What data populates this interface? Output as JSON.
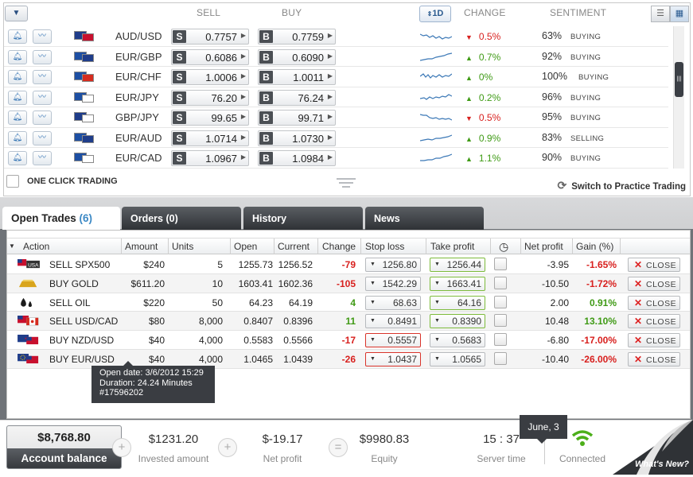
{
  "rates_panel": {
    "headers": {
      "sell": "SELL",
      "buy": "BUY",
      "change": "CHANGE",
      "sentiment": "SENTIMENT"
    },
    "timeframe": "1D",
    "filter_icon": "filter-icon",
    "rows": [
      {
        "symbol": "AUD/USD",
        "sell": "0.7757",
        "buy": "0.7759",
        "change": "0.5%",
        "direction": "down",
        "pct": "63%",
        "sentiment": "BUYING",
        "flag1": "#1f3d8a",
        "flag2": "#c8102e"
      },
      {
        "symbol": "EUR/GBP",
        "sell": "0.6086",
        "buy": "0.6090",
        "change": "0.7%",
        "direction": "up",
        "pct": "92%",
        "sentiment": "BUYING",
        "flag1": "#1d4fa3",
        "flag2": "#1f3d8a"
      },
      {
        "symbol": "EUR/CHF",
        "sell": "1.0006",
        "buy": "1.0011",
        "change": "0%",
        "direction": "up",
        "pct": "100%",
        "sentiment": "BUYING",
        "flag1": "#1d4fa3",
        "flag2": "#d52b1e"
      },
      {
        "symbol": "EUR/JPY",
        "sell": "76.20",
        "buy": "76.24",
        "change": "0.2%",
        "direction": "up",
        "pct": "96%",
        "sentiment": "BUYING",
        "flag1": "#1d4fa3",
        "flag2": "#ffffff"
      },
      {
        "symbol": "GBP/JPY",
        "sell": "99.65",
        "buy": "99.71",
        "change": "0.5%",
        "direction": "down",
        "pct": "95%",
        "sentiment": "BUYING",
        "flag1": "#1f3d8a",
        "flag2": "#ffffff"
      },
      {
        "symbol": "EUR/AUD",
        "sell": "1.0714",
        "buy": "1.0730",
        "change": "0.9%",
        "direction": "up",
        "pct": "83%",
        "sentiment": "SELLING",
        "flag1": "#1d4fa3",
        "flag2": "#1f3d8a"
      },
      {
        "symbol": "EUR/CAD",
        "sell": "1.0967",
        "buy": "1.0984",
        "change": "1.1%",
        "direction": "up",
        "pct": "90%",
        "sentiment": "BUYING",
        "flag1": "#1d4fa3",
        "flag2": "#ffffff"
      }
    ],
    "one_click_label": "ONE CLICK TRADING",
    "practice_label": "Switch to Practice Trading"
  },
  "tabs": [
    {
      "label": "Open Trades",
      "count": "(6)"
    },
    {
      "label": "Orders (0)"
    },
    {
      "label": "History"
    },
    {
      "label": "News"
    }
  ],
  "trades_table": {
    "columns": [
      "Action",
      "Amount",
      "Units",
      "Open",
      "Current",
      "Change",
      "Stop loss",
      "Take profit",
      "Net profit",
      "Gain (%)"
    ],
    "close_label": "CLOSE",
    "rows": [
      {
        "action": "SELL SPX500",
        "amount": "$240",
        "units": "5",
        "open": "1255.73",
        "current": "1256.52",
        "change": "-79",
        "stop": "1256.80",
        "take": "1256.44",
        "net": "-3.95",
        "gain": "-1.65%",
        "icon": "usa-index-icon",
        "stop_style": "",
        "take_style": "green"
      },
      {
        "action": "BUY GOLD",
        "amount": "$611.20",
        "units": "10",
        "open": "1603.41",
        "current": "1602.36",
        "change": "-105",
        "stop": "1542.29",
        "take": "1663.41",
        "net": "-10.50",
        "gain": "-1.72%",
        "icon": "gold-bar-icon",
        "stop_style": "",
        "take_style": "green"
      },
      {
        "action": "SELL OIL",
        "amount": "$220",
        "units": "50",
        "open": "64.23",
        "current": "64.19",
        "change": "4",
        "stop": "68.63",
        "take": "64.16",
        "net": "2.00",
        "gain": "0.91%",
        "icon": "oil-drops-icon",
        "stop_style": "",
        "take_style": "green"
      },
      {
        "action": "SELL USD/CAD",
        "amount": "$80",
        "units": "8,000",
        "open": "0.8407",
        "current": "0.8396",
        "change": "11",
        "stop": "0.8491",
        "take": "0.8390",
        "net": "10.48",
        "gain": "13.10%",
        "icon": "us-canada-flags-icon",
        "stop_style": "",
        "take_style": "green"
      },
      {
        "action": "BUY NZD/USD",
        "amount": "$40",
        "units": "4,000",
        "open": "0.5583",
        "current": "0.5566",
        "change": "-17",
        "stop": "0.5557",
        "take": "0.5683",
        "net": "-6.80",
        "gain": "-17.00%",
        "icon": "nz-us-flags-icon",
        "stop_style": "red",
        "take_style": ""
      },
      {
        "action": "BUY EUR/USD",
        "amount": "$40",
        "units": "4,000",
        "open": "1.0465",
        "current": "1.0439",
        "change": "-26",
        "stop": "1.0437",
        "take": "1.0565",
        "net": "-10.40",
        "gain": "-26.00%",
        "icon": "eu-us-flags-icon",
        "stop_style": "red",
        "take_style": ""
      }
    ],
    "tooltip": {
      "line1": "Open date:  3/6/2012 15:29",
      "line2": "Duration:  24.24 Minutes",
      "line3": "#17596202"
    }
  },
  "footer": {
    "account_value": "$8,768.80",
    "account_label": "Account balance",
    "invested_value": "$1231.20",
    "invested_label": "Invested amount",
    "net_value": "$-19.17",
    "net_label": "Net profit",
    "equity_value": "$9980.83",
    "equity_label": "Equity",
    "time_value": "15 : 37",
    "time_label": "Server time",
    "date_tip": "June, 3",
    "connected_label": "Connected",
    "whats_new": "What's New?"
  },
  "colors": {
    "accent": "#3c89c5",
    "negative": "#d8201e",
    "positive": "#3f9a15",
    "dark": "#35383c"
  }
}
